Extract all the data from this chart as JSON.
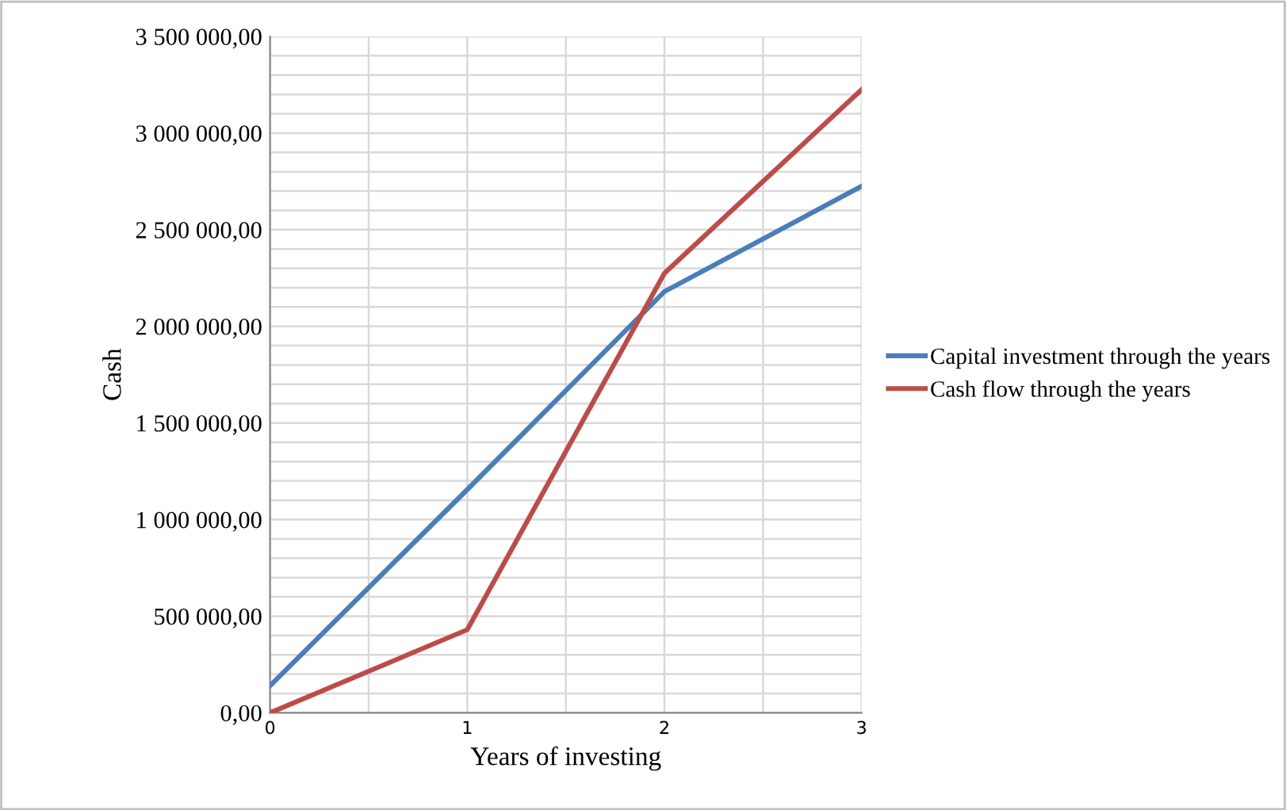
{
  "chart_data": {
    "type": "line",
    "xlabel": "Years of investing",
    "ylabel": "Cash",
    "x": [
      0,
      1,
      2,
      3
    ],
    "series": [
      {
        "name": "Capital investment through the years",
        "color": "#4a7ebb",
        "values": [
          140000,
          1155000,
          2180000,
          2725000
        ]
      },
      {
        "name": "Cash flow through the years",
        "color": "#be4b48",
        "values": [
          0,
          430000,
          2275000,
          3225000
        ]
      }
    ],
    "xlim": [
      0,
      3
    ],
    "xticks": [
      0,
      {
        "value": 0.5,
        "label": null
      },
      1,
      {
        "value": 1.5,
        "label": null
      },
      2,
      {
        "value": 2.5,
        "label": null
      },
      3
    ],
    "ylim": [
      0,
      3500000
    ],
    "yticks": [
      {
        "value": 0,
        "label": "0,00"
      },
      {
        "value": 100000,
        "label": null
      },
      {
        "value": 200000,
        "label": null
      },
      {
        "value": 300000,
        "label": null
      },
      {
        "value": 400000,
        "label": null
      },
      {
        "value": 500000,
        "label": "500 000,00"
      },
      {
        "value": 600000,
        "label": null
      },
      {
        "value": 700000,
        "label": null
      },
      {
        "value": 800000,
        "label": null
      },
      {
        "value": 900000,
        "label": null
      },
      {
        "value": 1000000,
        "label": "1 000 000,00"
      },
      {
        "value": 1100000,
        "label": null
      },
      {
        "value": 1200000,
        "label": null
      },
      {
        "value": 1300000,
        "label": null
      },
      {
        "value": 1400000,
        "label": null
      },
      {
        "value": 1500000,
        "label": "1 500 000,00"
      },
      {
        "value": 1600000,
        "label": null
      },
      {
        "value": 1700000,
        "label": null
      },
      {
        "value": 1800000,
        "label": null
      },
      {
        "value": 1900000,
        "label": null
      },
      {
        "value": 2000000,
        "label": "2 000 000,00"
      },
      {
        "value": 2100000,
        "label": null
      },
      {
        "value": 2200000,
        "label": null
      },
      {
        "value": 2300000,
        "label": null
      },
      {
        "value": 2400000,
        "label": null
      },
      {
        "value": 2500000,
        "label": "2 500 000,00"
      },
      {
        "value": 2600000,
        "label": null
      },
      {
        "value": 2700000,
        "label": null
      },
      {
        "value": 2800000,
        "label": null
      },
      {
        "value": 2900000,
        "label": null
      },
      {
        "value": 3000000,
        "label": "3 000 000,00"
      },
      {
        "value": 3100000,
        "label": null
      },
      {
        "value": 3200000,
        "label": null
      },
      {
        "value": 3300000,
        "label": null
      },
      {
        "value": 3400000,
        "label": null
      },
      {
        "value": 3500000,
        "label": "3 500 000,00"
      }
    ],
    "grid": true,
    "legend": "right",
    "marker": "none",
    "line_style": "solid"
  }
}
